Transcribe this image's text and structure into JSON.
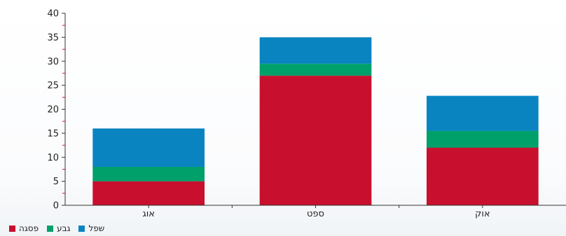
{
  "chart_data": {
    "type": "bar",
    "stacked": true,
    "categories": [
      "אוג",
      "ספט",
      "אוק"
    ],
    "series": [
      {
        "name": "פסגה",
        "color": "#c8102e",
        "values": [
          5,
          27,
          12
        ]
      },
      {
        "name": "גבע",
        "color": "#00a06b",
        "values": [
          3,
          2.5,
          3.5
        ]
      },
      {
        "name": "שפל",
        "color": "#0a84c1",
        "values": [
          8,
          5.5,
          7.3
        ]
      }
    ],
    "ylim": [
      0,
      40
    ],
    "yticks": [
      0,
      5,
      10,
      15,
      20,
      25,
      30,
      35,
      40
    ],
    "grid": false,
    "legend_position": "bottom-left"
  }
}
